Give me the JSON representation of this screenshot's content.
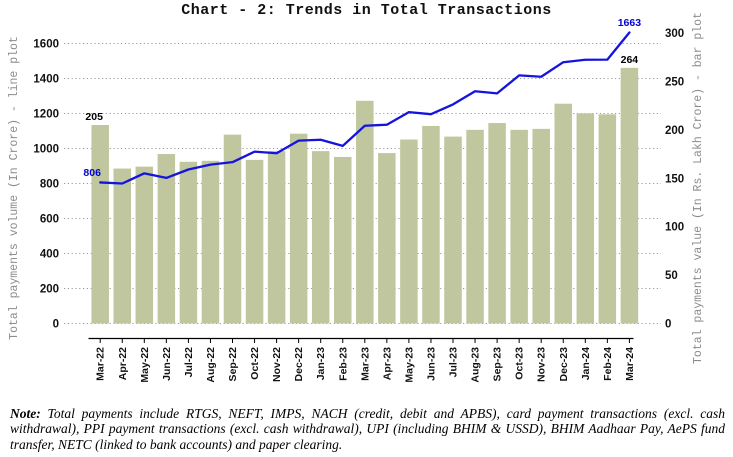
{
  "title": "Chart - 2: Trends in Total Transactions",
  "note": {
    "label": "Note:",
    "text": " Total payments include RTGS, NEFT, IMPS, NACH (credit, debit and APBS), card payment transactions (excl. cash withdrawal), PPI payment transactions (excl. cash withdrawal), UPI (including BHIM & USSD), BHIM Aadhaar Pay, AePS fund transfer, NETC (linked to bank accounts) and paper clearing."
  },
  "chart_data": {
    "type": "bar+line combo",
    "title": "Chart - 2: Trends in Total Transactions",
    "categories": [
      "Mar-22",
      "Apr-22",
      "May-22",
      "Jun-22",
      "Jul-22",
      "Aug-22",
      "Sep-22",
      "Oct-22",
      "Nov-22",
      "Dec-22",
      "Jan-23",
      "Feb-23",
      "Mar-23",
      "Apr-23",
      "May-23",
      "Jun-23",
      "Jul-23",
      "Aug-23",
      "Sep-23",
      "Oct-23",
      "Nov-23",
      "Dec-23",
      "Jan-24",
      "Feb-24",
      "Mar-24"
    ],
    "series": [
      {
        "name": "Total payments value (In Rs. Lakh Crore) - bar plot",
        "type": "bar",
        "axis": "right",
        "color": "#c0c79e",
        "values": [
          205,
          160,
          162,
          175,
          167,
          168,
          195,
          169,
          178,
          196,
          178,
          172,
          230,
          176,
          190,
          204,
          193,
          200,
          207,
          200,
          201,
          227,
          217,
          216,
          264
        ]
      },
      {
        "name": "Total payments volume (In Crore) - line plot",
        "type": "line",
        "axis": "left",
        "color": "#1414dd",
        "values": [
          806,
          800,
          858,
          832,
          880,
          908,
          922,
          982,
          973,
          1045,
          1050,
          1015,
          1130,
          1136,
          1208,
          1196,
          1252,
          1327,
          1315,
          1418,
          1410,
          1493,
          1507,
          1508,
          1663
        ]
      }
    ],
    "left_axis": {
      "label": "Total payments volume (In Crore) - line plot",
      "min": 0,
      "max": 1600,
      "ticks": [
        0,
        200,
        400,
        600,
        800,
        1000,
        1200,
        1400,
        1600
      ]
    },
    "right_axis": {
      "label": "Total payments value (In Rs. Lakh Crore) - bar plot",
      "min": 0,
      "max": 300,
      "ticks": [
        0,
        50,
        100,
        150,
        200,
        250,
        300
      ]
    },
    "annotations": [
      {
        "text": "205",
        "series": "bar",
        "index": 0,
        "color": "#000000"
      },
      {
        "text": "264",
        "series": "bar",
        "index": 24,
        "color": "#000000"
      },
      {
        "text": "806",
        "series": "line",
        "index": 0,
        "color": "#0000e0"
      },
      {
        "text": "1663",
        "series": "line",
        "index": 24,
        "color": "#0000e0"
      }
    ],
    "grid": "horizontal dotted gridlines at left-axis ticks",
    "legend_position": "none",
    "colors": {
      "bar_fill": "#c0c79e",
      "line": "#1414dd",
      "gridline": "#9a9a9a",
      "tick_text": "#111111",
      "axis_title_text": "#8c8c8c"
    }
  }
}
